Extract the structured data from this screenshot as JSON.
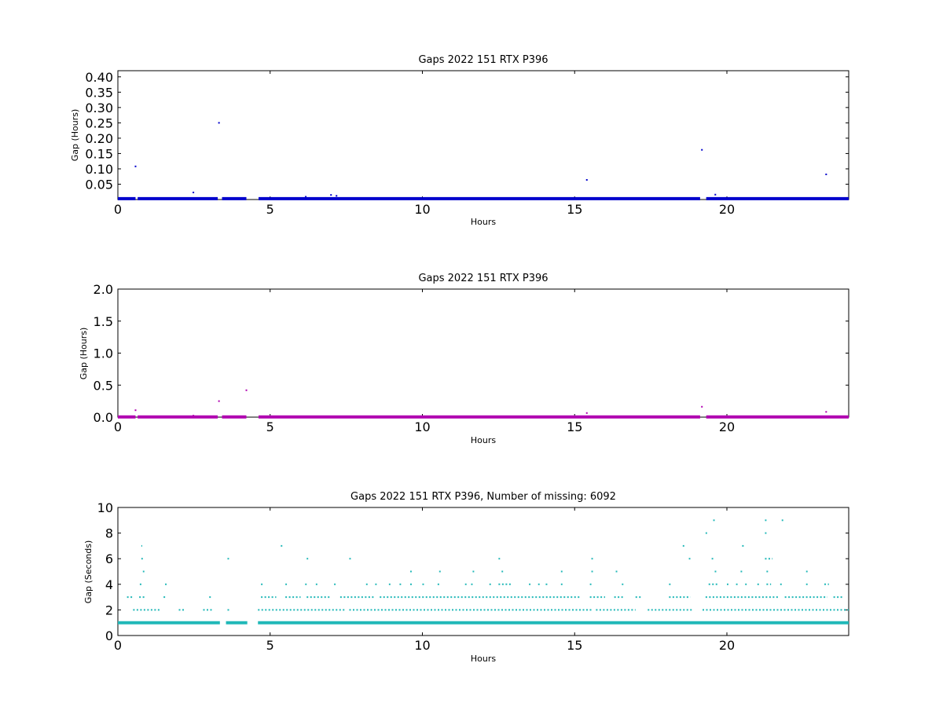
{
  "chart_data": [
    {
      "type": "scatter",
      "title": "Gaps 2022 151 RTX  P396",
      "xlabel": "Hours",
      "ylabel": "Gap (Hours)",
      "xlim": [
        0,
        24
      ],
      "ylim": [
        0,
        0.42
      ],
      "x_ticks": [
        "0",
        "5",
        "10",
        "15",
        "20"
      ],
      "y_ticks": [
        "0.05",
        "0.10",
        "0.15",
        "0.20",
        "0.25",
        "0.30",
        "0.35",
        "0.40"
      ],
      "color": "#0000cc",
      "baseline": {
        "y": 0.003,
        "segments": [
          [
            0,
            0.58
          ],
          [
            0.65,
            3.28
          ],
          [
            3.42,
            4.22
          ],
          [
            4.62,
            19.12
          ],
          [
            19.32,
            24
          ]
        ]
      },
      "points": [
        {
          "x": 0.58,
          "y": 0.108
        },
        {
          "x": 2.48,
          "y": 0.023
        },
        {
          "x": 3.32,
          "y": 0.25
        },
        {
          "x": 6.17,
          "y": 0.009
        },
        {
          "x": 7.0,
          "y": 0.015
        },
        {
          "x": 7.18,
          "y": 0.012
        },
        {
          "x": 15.4,
          "y": 0.064
        },
        {
          "x": 19.18,
          "y": 0.162
        },
        {
          "x": 19.62,
          "y": 0.016
        },
        {
          "x": 23.26,
          "y": 0.082
        }
      ],
      "grid": false
    },
    {
      "type": "scatter",
      "title": "Gaps 2022 151 RTX  P396",
      "xlabel": "Hours",
      "ylabel": "Gap (Hours)",
      "xlim": [
        0,
        24
      ],
      "ylim": [
        0,
        2.0
      ],
      "x_ticks": [
        "0",
        "5",
        "10",
        "15",
        "20"
      ],
      "y_ticks": [
        "0.0",
        "0.5",
        "1.0",
        "1.5",
        "2.0"
      ],
      "color": "#b000b0",
      "baseline": {
        "y": 0.003,
        "segments": [
          [
            0,
            0.58
          ],
          [
            0.65,
            3.28
          ],
          [
            3.42,
            4.22
          ],
          [
            4.62,
            19.12
          ],
          [
            19.32,
            24
          ]
        ]
      },
      "points": [
        {
          "x": 0.58,
          "y": 0.108
        },
        {
          "x": 2.48,
          "y": 0.023
        },
        {
          "x": 3.32,
          "y": 0.25
        },
        {
          "x": 4.22,
          "y": 0.42
        },
        {
          "x": 15.4,
          "y": 0.064
        },
        {
          "x": 19.18,
          "y": 0.162
        },
        {
          "x": 23.26,
          "y": 0.082
        }
      ],
      "grid": false
    },
    {
      "type": "scatter",
      "title": "Gaps 2022 151 RTX  P396, Number of missing: 6092",
      "xlabel": "Hours",
      "ylabel": "Gap (Seconds)",
      "xlim": [
        0,
        24
      ],
      "ylim": [
        0,
        10
      ],
      "x_ticks": [
        "0",
        "5",
        "10",
        "15",
        "20"
      ],
      "y_ticks": [
        "0",
        "2",
        "4",
        "6",
        "8",
        "10"
      ],
      "color": "#20b8b8",
      "baseline": {
        "y": 1,
        "segments": [
          [
            0,
            3.35
          ],
          [
            3.55,
            4.25
          ],
          [
            4.6,
            24
          ]
        ]
      },
      "rows": [
        {
          "y": 2,
          "ranges": [
            [
              0.5,
              1.4
            ],
            [
              2.0,
              2.2
            ],
            [
              2.8,
              3.1
            ],
            [
              3.6,
              3.7
            ],
            [
              4.6,
              7.5
            ],
            [
              7.6,
              15.6
            ],
            [
              15.7,
              17.0
            ],
            [
              17.4,
              18.9
            ],
            [
              19.2,
              24.0
            ]
          ]
        },
        {
          "y": 3,
          "ranges": [
            [
              0.3,
              0.5
            ],
            [
              0.7,
              0.9
            ],
            [
              1.5,
              1.6
            ],
            [
              3.0,
              3.1
            ],
            [
              4.7,
              5.2
            ],
            [
              5.5,
              6.0
            ],
            [
              6.2,
              7.0
            ],
            [
              7.3,
              8.4
            ],
            [
              8.6,
              15.2
            ],
            [
              15.5,
              16.0
            ],
            [
              16.3,
              16.6
            ],
            [
              17.0,
              17.2
            ],
            [
              18.1,
              18.8
            ],
            [
              19.3,
              21.7
            ],
            [
              21.9,
              23.3
            ],
            [
              23.5,
              23.8
            ]
          ]
        },
        {
          "y": 4,
          "ranges": [
            [
              0.72,
              0.82
            ],
            [
              1.55,
              1.6
            ],
            [
              4.7,
              4.8
            ],
            [
              5.5,
              5.55
            ],
            [
              6.15,
              6.2
            ],
            [
              6.5,
              6.55
            ],
            [
              7.1,
              7.15
            ],
            [
              8.15,
              8.2
            ],
            [
              8.45,
              8.5
            ],
            [
              8.9,
              8.95
            ],
            [
              9.25,
              9.3
            ],
            [
              9.6,
              9.7
            ],
            [
              10.0,
              10.05
            ],
            [
              10.5,
              10.6
            ],
            [
              11.4,
              11.45
            ],
            [
              11.6,
              11.65
            ],
            [
              12.2,
              12.25
            ],
            [
              12.5,
              12.9
            ],
            [
              13.5,
              13.55
            ],
            [
              13.8,
              13.85
            ],
            [
              14.05,
              14.15
            ],
            [
              14.55,
              14.6
            ],
            [
              15.5,
              15.55
            ],
            [
              16.55,
              16.6
            ],
            [
              18.1,
              18.15
            ],
            [
              19.4,
              19.7
            ],
            [
              20.0,
              20.05
            ],
            [
              20.3,
              20.35
            ],
            [
              20.6,
              20.65
            ],
            [
              21.0,
              21.1
            ],
            [
              21.3,
              21.45
            ],
            [
              21.75,
              21.8
            ],
            [
              22.6,
              22.65
            ],
            [
              23.2,
              23.35
            ]
          ]
        },
        {
          "y": 5,
          "ranges": [
            [
              0.82,
              0.87
            ],
            [
              9.6,
              9.65
            ],
            [
              10.55,
              10.6
            ],
            [
              11.65,
              11.7
            ],
            [
              12.6,
              12.65
            ],
            [
              14.55,
              14.6
            ],
            [
              15.55,
              15.6
            ],
            [
              16.35,
              16.4
            ],
            [
              19.6,
              19.65
            ],
            [
              20.45,
              20.5
            ],
            [
              21.3,
              21.35
            ],
            [
              22.6,
              22.65
            ]
          ]
        },
        {
          "y": 6,
          "ranges": [
            [
              0.77,
              0.82
            ],
            [
              3.6,
              3.65
            ],
            [
              6.2,
              6.25
            ],
            [
              7.6,
              7.65
            ],
            [
              12.5,
              12.55
            ],
            [
              15.55,
              15.6
            ],
            [
              18.75,
              18.8
            ],
            [
              19.5,
              19.55
            ],
            [
              21.25,
              21.5
            ]
          ]
        },
        {
          "y": 7,
          "ranges": [
            [
              0.77,
              0.8
            ],
            [
              5.35,
              5.4
            ],
            [
              18.55,
              18.6
            ],
            [
              20.5,
              20.6
            ]
          ]
        },
        {
          "y": 8,
          "ranges": [
            [
              19.3,
              19.35
            ],
            [
              21.25,
              21.3
            ]
          ]
        },
        {
          "y": 9,
          "ranges": [
            [
              19.55,
              19.6
            ],
            [
              21.25,
              21.3
            ],
            [
              21.8,
              21.85
            ]
          ]
        }
      ],
      "grid": false
    }
  ]
}
